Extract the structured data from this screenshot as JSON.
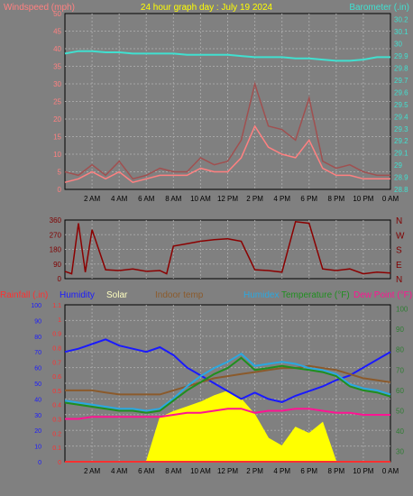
{
  "title": "24 hour graph day : July 19 2024",
  "colors": {
    "background": "#808080",
    "grid": "#a6a6a6",
    "axis": "#000000",
    "wind_label": "#ff8080",
    "wind_avg": "#ff8080",
    "wind_gust": "#a05050",
    "baro": "#40e0d0",
    "dir_line": "#8b0000",
    "dir_label": "#800000",
    "rain": "#ff3030",
    "humidity": "#1a1aff",
    "solar": "#ffff00",
    "indoor": "#8b5a2b",
    "humidex": "#2aa8e0",
    "temperature": "#1f8f1f",
    "dewpoint": "#ff1493",
    "right_axis": "#2e7d32"
  },
  "x_ticks": [
    "2 AM",
    "4 AM",
    "6 AM",
    "8 AM",
    "10 AM",
    "12 PM",
    "2 PM",
    "4 PM",
    "6 PM",
    "8 PM",
    "10 PM",
    "0 AM"
  ],
  "chart_data": [
    {
      "type": "line",
      "ylabel_left": "Windspeed (mph)",
      "ylabel_right": "Barometer (.in)",
      "ylim_left": [
        0,
        50
      ],
      "ylim_right": [
        28.8,
        30.25
      ],
      "left_ticks": [
        "0",
        "5",
        "10",
        "15",
        "20",
        "25",
        "30",
        "35",
        "40",
        "45",
        "50"
      ],
      "right_ticks": [
        "28.8",
        "28.9",
        "29",
        "29.1",
        "29.2",
        "29.3",
        "29.4",
        "29.5",
        "29.6",
        "29.7",
        "29.8",
        "29.9",
        "30",
        "30.1",
        "30.2"
      ],
      "x": [
        0,
        1,
        2,
        3,
        4,
        5,
        6,
        7,
        8,
        9,
        10,
        11,
        12,
        13,
        14,
        15,
        16,
        17,
        18,
        19,
        20,
        21,
        22,
        23,
        24
      ],
      "series": [
        {
          "name": "Barometer (.in)",
          "axis": "right",
          "values": [
            29.92,
            29.94,
            29.94,
            29.93,
            29.93,
            29.92,
            29.92,
            29.92,
            29.92,
            29.91,
            29.91,
            29.91,
            29.91,
            29.9,
            29.89,
            29.89,
            29.89,
            29.88,
            29.88,
            29.87,
            29.86,
            29.86,
            29.87,
            29.89,
            29.89
          ]
        },
        {
          "name": "wind gust",
          "axis": "left",
          "values": [
            5,
            4,
            7,
            4,
            8,
            3,
            4,
            6,
            5,
            5,
            9,
            7,
            8,
            14,
            30,
            18,
            17,
            14,
            26,
            8,
            6,
            7,
            5,
            4,
            4
          ]
        },
        {
          "name": "wind avg",
          "axis": "left",
          "values": [
            2,
            3,
            5,
            3,
            5,
            2,
            3,
            4,
            4,
            4,
            6,
            5,
            5,
            9,
            18,
            12,
            10,
            9,
            14,
            6,
            4,
            4,
            3,
            3,
            3
          ]
        }
      ]
    },
    {
      "type": "line",
      "ylim": [
        0,
        360
      ],
      "left_ticks": [
        "0",
        "90",
        "180",
        "270",
        "360"
      ],
      "right_labels": [
        "N",
        "E",
        "S",
        "W",
        "N"
      ],
      "x": [
        0,
        0.5,
        1,
        1.5,
        2,
        3,
        4,
        5,
        6,
        7,
        7.5,
        8,
        9,
        10,
        11,
        12,
        13,
        14,
        15,
        16,
        17,
        18,
        19,
        20,
        21,
        22,
        23,
        24
      ],
      "values": [
        45,
        30,
        340,
        40,
        300,
        55,
        50,
        60,
        45,
        50,
        30,
        200,
        215,
        230,
        240,
        245,
        230,
        55,
        50,
        40,
        350,
        340,
        60,
        50,
        60,
        30,
        40,
        35
      ]
    },
    {
      "type": "line",
      "labels": [
        "Rainfall (.in)",
        "Humidity",
        "Solar",
        "Indoor temp",
        "Humidex",
        "Temperature (°F)",
        "Dew Point (°F)"
      ],
      "left_ticks_hum": [
        "0",
        "10",
        "20",
        "30",
        "40",
        "50",
        "60",
        "70",
        "80",
        "90",
        "100"
      ],
      "left_ticks_rain": [
        "0",
        "0.1",
        "0.2",
        "0.3",
        "0.4",
        "0.5",
        "0.6",
        "0.7",
        "0.8",
        "0.9",
        "1",
        "1.1"
      ],
      "right_ticks": [
        "30",
        "40",
        "50",
        "60",
        "70",
        "80",
        "90",
        "100"
      ],
      "ylim_humidity": [
        0,
        100
      ],
      "ylim_temp": [
        25,
        102
      ],
      "x": [
        0,
        1,
        2,
        3,
        4,
        5,
        6,
        7,
        8,
        9,
        10,
        11,
        12,
        13,
        14,
        15,
        16,
        17,
        18,
        19,
        20,
        21,
        22,
        23,
        24
      ],
      "series": [
        {
          "name": "Humidity",
          "values": [
            70,
            72,
            75,
            78,
            74,
            72,
            70,
            73,
            68,
            60,
            55,
            50,
            45,
            40,
            44,
            40,
            38,
            42,
            45,
            48,
            52,
            55,
            60,
            65,
            70
          ]
        },
        {
          "name": "Solar",
          "values": [
            0,
            0,
            0,
            0,
            0,
            0,
            0,
            28,
            32,
            35,
            38,
            42,
            45,
            40,
            30,
            15,
            10,
            22,
            18,
            25,
            0,
            0,
            0,
            0,
            0
          ]
        },
        {
          "name": "Indoor temp",
          "values": [
            60,
            60,
            60,
            59,
            58,
            58,
            58,
            58,
            60,
            62,
            64,
            66,
            67,
            68,
            69,
            70,
            71,
            71,
            72,
            71,
            70,
            68,
            66,
            65,
            64
          ]
        },
        {
          "name": "Humidex",
          "values": [
            55,
            54,
            53,
            52,
            51,
            51,
            50,
            51,
            56,
            62,
            67,
            71,
            74,
            78,
            72,
            73,
            74,
            73,
            71,
            70,
            68,
            63,
            61,
            60,
            58
          ]
        },
        {
          "name": "Temperature (°F)",
          "values": [
            54,
            53,
            52,
            51,
            50,
            50,
            49,
            50,
            55,
            60,
            64,
            68,
            71,
            76,
            70,
            71,
            72,
            71,
            70,
            69,
            67,
            62,
            60,
            59,
            57
          ]
        },
        {
          "name": "Dew Point (°F)",
          "values": [
            46,
            46,
            47,
            47,
            47,
            47,
            47,
            47,
            48,
            49,
            49,
            50,
            51,
            51,
            49,
            50,
            50,
            51,
            51,
            50,
            49,
            49,
            48,
            48,
            48
          ]
        },
        {
          "name": "Rainfall (.in)",
          "values": [
            0,
            0,
            0,
            0,
            0,
            0,
            0,
            0,
            0,
            0,
            0,
            0,
            0,
            0,
            0,
            0,
            0,
            0,
            0,
            0,
            0,
            0,
            0,
            0,
            0
          ]
        }
      ]
    }
  ]
}
